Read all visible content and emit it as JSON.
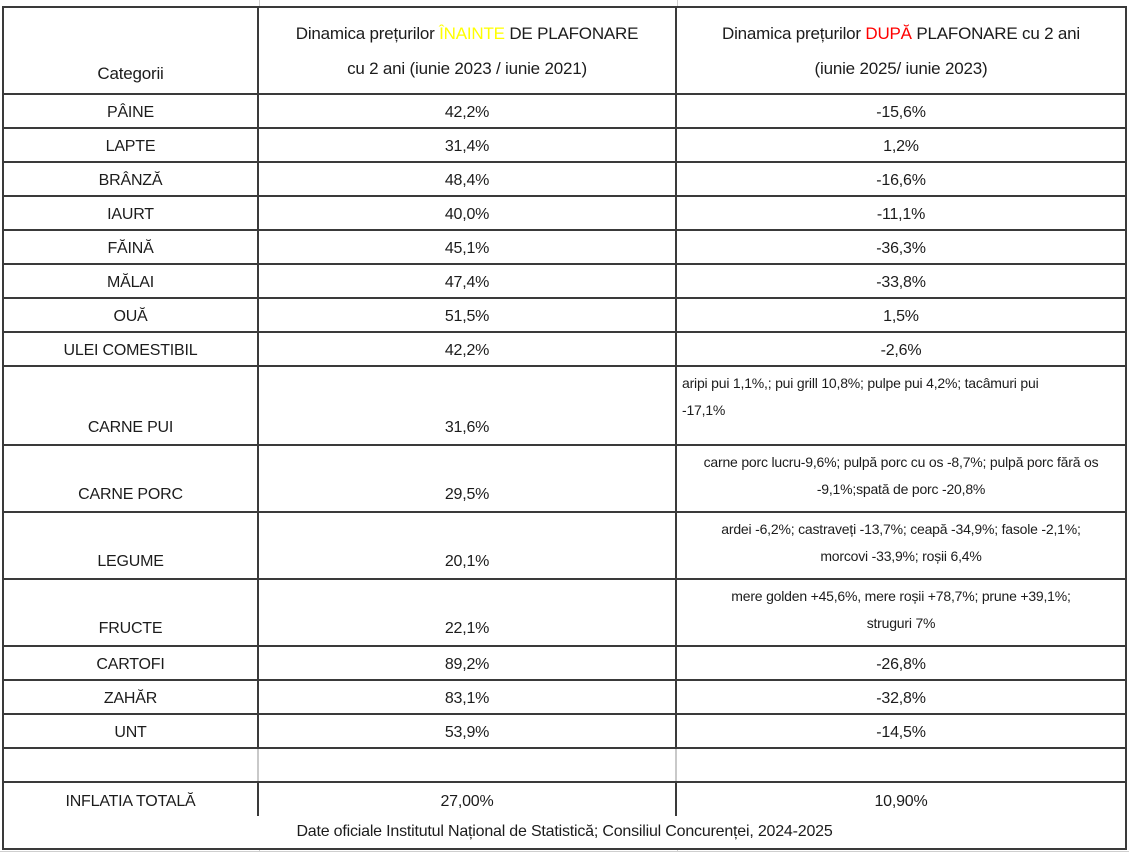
{
  "table": {
    "header": {
      "categories_label": "Categorii",
      "before": {
        "pre": "Dinamica prețurilor ",
        "highlight": "ÎNAINTE",
        "post": " DE PLAFONARE",
        "line2": "cu 2 ani (iunie 2023 / iunie 2021)"
      },
      "after": {
        "pre": "Dinamica prețurilor ",
        "highlight": "DUPĂ",
        "post": " PLAFONARE cu 2 ani",
        "line2": "(iunie 2025/ iunie 2023)"
      }
    },
    "rows": [
      {
        "category": "PÂINE",
        "before": "42,2%",
        "after": "-15,6%"
      },
      {
        "category": "LAPTE",
        "before": "31,4%",
        "after": "1,2%"
      },
      {
        "category": "BRÂNZĂ",
        "before": "48,4%",
        "after": "-16,6%"
      },
      {
        "category": "IAURT",
        "before": "40,0%",
        "after": "-11,1%"
      },
      {
        "category": "FĂINĂ",
        "before": "45,1%",
        "after": "-36,3%"
      },
      {
        "category": "MĂLAI",
        "before": "47,4%",
        "after": "-33,8%"
      },
      {
        "category": "OUĂ",
        "before": "51,5%",
        "after": "1,5%"
      },
      {
        "category": "ULEI COMESTIBIL",
        "before": "42,2%",
        "after": "-2,6%"
      },
      {
        "category": "CARNE PUI",
        "before": "31,6%",
        "size": "xl",
        "after_align": "left",
        "after_lines": [
          "aripi pui 1,1%,; pui grill 10,8%; pulpe pui 4,2%; tacâmuri pui",
          "-17,1%"
        ]
      },
      {
        "category": "CARNE PORC",
        "before": "29,5%",
        "size": "l",
        "after_align": "center",
        "after_lines": [
          "carne porc lucru-9,6%; pulpă porc cu os -8,7%; pulpă porc fără os",
          "-9,1%;spată de porc -20,8%"
        ]
      },
      {
        "category": "LEGUME",
        "before": "20,1%",
        "size": "l",
        "after_align": "center",
        "after_lines": [
          "ardei  -6,2%; castraveți -13,7%; ceapă -34,9%; fasole -2,1%;",
          "morcovi -33,9%; roșii 6,4%"
        ]
      },
      {
        "category": "FRUCTE",
        "before": "22,1%",
        "size": "l",
        "after_align": "center",
        "after_lines": [
          "mere golden +45,6%, mere roșii +78,7%; prune +39,1%;",
          "struguri 7%"
        ]
      },
      {
        "category": "CARTOFI",
        "before": "89,2%",
        "after": "-26,8%"
      },
      {
        "category": "ZAHĂR",
        "before": "83,1%",
        "after": "-32,8%"
      },
      {
        "category": "UNT",
        "before": "53,9%",
        "after": "-14,5%"
      },
      {
        "category": "",
        "before": "",
        "after": "",
        "size": "empty"
      },
      {
        "category": "INFLATIA TOTALĂ",
        "before": "27,00%",
        "after": "10,90%",
        "size": "inf"
      }
    ],
    "footer": "Date oficiale Institutul Național de Statistică; Consiliul Concurenței, 2024-2025"
  },
  "colors": {
    "highlight_inainte": "#ffff00",
    "highlight_dupa": "#ff0000",
    "table_border": "#3a3a3a"
  }
}
